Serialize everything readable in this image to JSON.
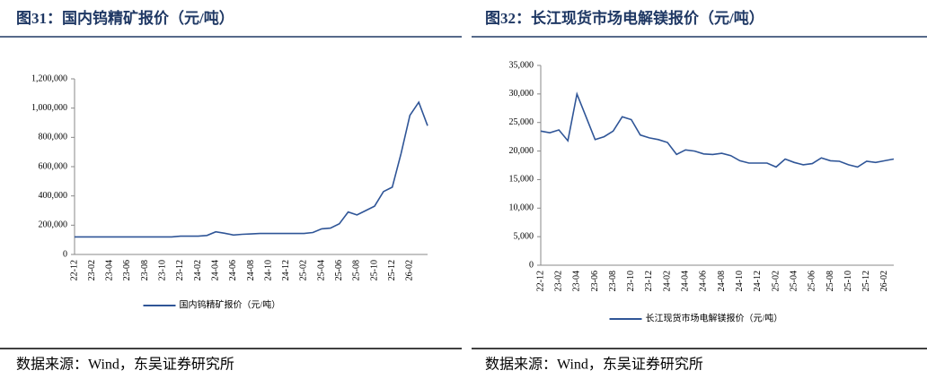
{
  "chart_data": [
    {
      "type": "line",
      "title": "图31：国内钨精矿报价（元/吨）",
      "source": "数据来源：Wind，东吴证券研究所",
      "categories": [
        "22-12",
        null,
        "23-02",
        null,
        "23-04",
        null,
        "23-06",
        null,
        "23-08",
        null,
        "23-10",
        null,
        "23-12",
        null,
        "24-02",
        null,
        "24-04",
        null,
        "24-06",
        null,
        "24-08",
        null,
        "24-10",
        null,
        "24-12",
        null,
        "25-02",
        null,
        "25-04",
        null,
        "25-06",
        null,
        "25-08",
        null,
        "25-10",
        null,
        "25-12",
        null,
        "26-02",
        null,
        null
      ],
      "series": [
        {
          "name": "国内钨精矿报价（元/吨）",
          "color": "#2f5597",
          "values": [
            120000,
            120000,
            120000,
            120000,
            120000,
            120000,
            120000,
            120000,
            120000,
            120000,
            120000,
            120000,
            125000,
            125000,
            125000,
            130000,
            155000,
            145000,
            133000,
            138000,
            140000,
            143000,
            143000,
            143000,
            143000,
            143000,
            143000,
            150000,
            175000,
            180000,
            210000,
            290000,
            270000,
            300000,
            330000,
            430000,
            460000,
            690000,
            950000,
            1040000,
            880000
          ]
        }
      ],
      "ylim": [
        0,
        1200000
      ],
      "yticks": [
        0,
        {
          "value": 200000,
          "label": "200,000"
        },
        {
          "value": 400000,
          "label": "400,000"
        },
        {
          "value": 600000,
          "label": "600,000"
        },
        {
          "value": 800000,
          "label": "800,000"
        },
        {
          "value": 1000000,
          "label": "1,000,000"
        },
        {
          "value": 1200000,
          "label": "1,200,000"
        }
      ],
      "grid": false,
      "legend": "bottom"
    },
    {
      "type": "line",
      "title": "图32：长江现货市场电解镁报价（元/吨）",
      "source": "数据来源：Wind，东吴证券研究所",
      "categories": [
        "22-12",
        null,
        "23-02",
        null,
        "23-04",
        null,
        "23-06",
        null,
        "23-08",
        null,
        "23-10",
        null,
        "23-12",
        null,
        "24-02",
        null,
        "24-04",
        null,
        "24-06",
        null,
        "24-08",
        null,
        "24-10",
        null,
        "24-12",
        null,
        "25-02",
        null,
        "25-04",
        null,
        "25-06",
        null,
        "25-08",
        null,
        "25-10",
        null,
        "25-12",
        null,
        "26-02",
        null
      ],
      "series": [
        {
          "name": "长江现货市场电解镁报价（元/吨）",
          "color": "#2f5597",
          "values": [
            23500,
            23200,
            23700,
            21800,
            30000,
            26000,
            22000,
            22500,
            23500,
            26000,
            25500,
            22800,
            22300,
            22000,
            21500,
            19400,
            20200,
            20000,
            19500,
            19400,
            19600,
            19200,
            18300,
            17900,
            17900,
            17900,
            17200,
            18600,
            18000,
            17600,
            17800,
            18800,
            18300,
            18200,
            17600,
            17200,
            18200,
            18000,
            18300,
            18600
          ]
        }
      ],
      "ylim": [
        0,
        35000
      ],
      "yticks": [
        0,
        {
          "value": 5000,
          "label": "5,000"
        },
        {
          "value": 10000,
          "label": "10,000"
        },
        {
          "value": 15000,
          "label": "15,000"
        },
        {
          "value": 20000,
          "label": "20,000"
        },
        {
          "value": 25000,
          "label": "25,000"
        },
        {
          "value": 30000,
          "label": "30,000"
        },
        {
          "value": 35000,
          "label": "35,000"
        }
      ],
      "grid": false,
      "legend": "bottom"
    }
  ]
}
